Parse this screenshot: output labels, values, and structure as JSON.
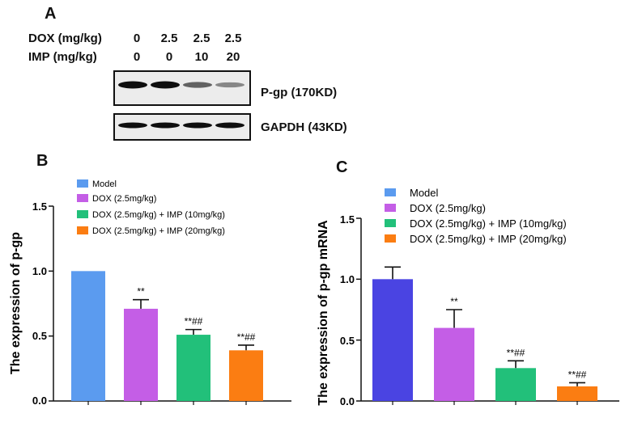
{
  "panels": {
    "a": "A",
    "b": "B",
    "c": "C"
  },
  "western_blot": {
    "dox_label": "DOX (mg/kg)",
    "imp_label": "IMP (mg/kg)",
    "dox_values": [
      "0",
      "2.5",
      "2.5",
      "2.5"
    ],
    "imp_values": [
      "0",
      "0",
      "10",
      "20"
    ],
    "bands": [
      {
        "label": "P-gp (170KD)",
        "intensity": [
          1.0,
          1.0,
          0.55,
          0.35
        ]
      },
      {
        "label": "GAPDH (43KD)",
        "intensity": [
          1.0,
          1.0,
          1.0,
          1.0
        ]
      }
    ]
  },
  "legend": [
    {
      "label": "Model",
      "color": "#5b9bef"
    },
    {
      "label": "DOX (2.5mg/kg)",
      "color": "#c45ee6"
    },
    {
      "label": "DOX (2.5mg/kg) + IMP (10mg/kg)",
      "color": "#22c07a"
    },
    {
      "label": "DOX (2.5mg/kg) + IMP (20mg/kg)",
      "color": "#fb7d12"
    }
  ],
  "chart_data": [
    {
      "type": "bar",
      "panel": "B",
      "ylabel": "The expression of p-gp",
      "ylim": [
        0,
        1.5
      ],
      "yticks": [
        "0.0",
        "0.5",
        "1.0",
        "1.5"
      ],
      "values": [
        1.0,
        0.71,
        0.51,
        0.39
      ],
      "errors": [
        0,
        0.07,
        0.04,
        0.04
      ],
      "annotations": [
        "",
        "**",
        "**##",
        "**##"
      ],
      "colors": [
        "#5b9bef",
        "#c45ee6",
        "#22c07a",
        "#fb7d12"
      ]
    },
    {
      "type": "bar",
      "panel": "C",
      "ylabel": "The expression of p-gp mRNA",
      "ylim": [
        0,
        1.5
      ],
      "yticks": [
        "0.0",
        "0.5",
        "1.0",
        "1.5"
      ],
      "values": [
        1.0,
        0.6,
        0.27,
        0.12
      ],
      "errors": [
        0.1,
        0.15,
        0.06,
        0.03
      ],
      "annotations": [
        "",
        "**",
        "**##",
        "**##"
      ],
      "colors": [
        "#4a44e2",
        "#c45ee6",
        "#22c07a",
        "#fb7d12"
      ]
    }
  ]
}
